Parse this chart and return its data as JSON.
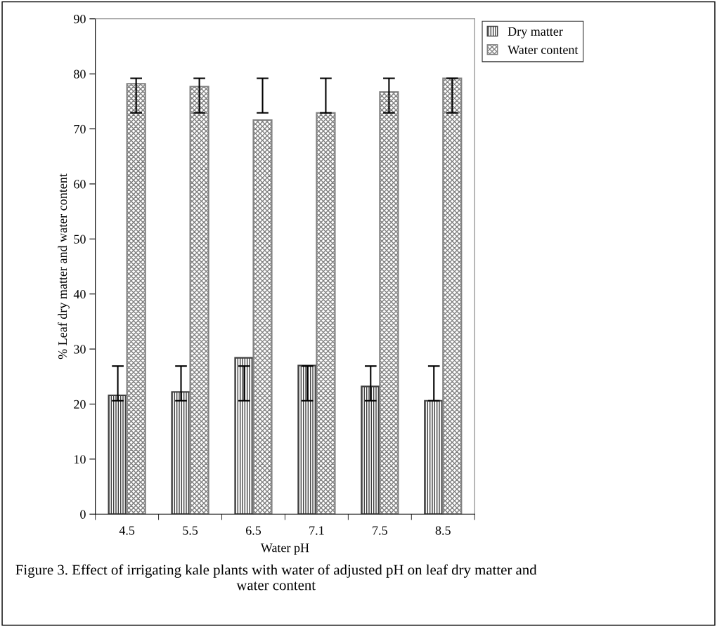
{
  "chart_data": {
    "type": "bar",
    "xlabel": "Water pH",
    "ylabel": "% Leaf dry matter and water content",
    "categories": [
      "4.5",
      "5.5",
      "6.5",
      "7.1",
      "7.5",
      "8.5"
    ],
    "series": [
      {
        "name": "Dry matter",
        "color": "#404040",
        "values": [
          21.6,
          22.2,
          28.4,
          27.0,
          23.2,
          20.6
        ],
        "errors": [
          [
            20.6,
            26.9
          ],
          [
            20.6,
            26.9
          ],
          [
            20.6,
            26.9
          ],
          [
            20.6,
            26.9
          ],
          [
            20.6,
            26.9
          ],
          [
            20.6,
            26.9
          ]
        ]
      },
      {
        "name": "Water content",
        "color": "#808080",
        "values": [
          78.2,
          77.7,
          71.6,
          72.9,
          76.7,
          79.2
        ],
        "errors": [
          [
            72.9,
            79.2
          ],
          [
            72.9,
            79.2
          ],
          [
            72.9,
            79.2
          ],
          [
            72.9,
            79.2
          ],
          [
            72.9,
            79.2
          ],
          [
            72.9,
            79.2
          ]
        ]
      }
    ],
    "ylim": [
      0,
      90
    ],
    "yticks": [
      0,
      10,
      20,
      30,
      40,
      50,
      60,
      70,
      80,
      90
    ],
    "grid": false,
    "legend": "top right",
    "annotations": [
      "Figure 3. Effect of irrigating kale plants with water of adjusted pH on leaf dry matter and water content"
    ]
  }
}
